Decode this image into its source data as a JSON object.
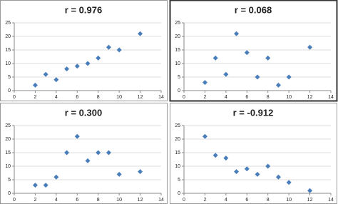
{
  "chart_data": [
    {
      "type": "scatter",
      "title": "r = 0.976",
      "color": "#4a7ebb",
      "grid": true,
      "x": [
        2,
        3,
        4,
        5,
        6,
        7,
        8,
        9,
        10,
        12
      ],
      "values": [
        2,
        6,
        4,
        8,
        9,
        10,
        12,
        16,
        15,
        21
      ],
      "xlim": [
        0,
        14
      ],
      "xticks": [
        0,
        2,
        4,
        6,
        8,
        10,
        12,
        14
      ],
      "ylim": [
        0,
        25
      ],
      "yticks": [
        0,
        5,
        10,
        15,
        20,
        25
      ]
    },
    {
      "type": "scatter",
      "title": "r = 0.068",
      "color": "#4a7ebb",
      "grid": true,
      "x": [
        2,
        3,
        4,
        5,
        6,
        7,
        8,
        9,
        10,
        12
      ],
      "values": [
        3,
        12,
        6,
        21,
        14,
        5,
        12,
        2,
        5,
        16
      ],
      "xlim": [
        0,
        14
      ],
      "xticks": [
        0,
        2,
        4,
        6,
        8,
        10,
        12,
        14
      ],
      "ylim": [
        0,
        25
      ],
      "yticks": [
        0,
        5,
        10,
        15,
        20,
        25
      ]
    },
    {
      "type": "scatter",
      "title": "r = 0.300",
      "color": "#4a7ebb",
      "grid": true,
      "x": [
        2,
        3,
        4,
        5,
        6,
        7,
        8,
        9,
        10,
        12
      ],
      "values": [
        3,
        3,
        6,
        15,
        21,
        12,
        15,
        15,
        7,
        8
      ],
      "xlim": [
        0,
        14
      ],
      "xticks": [
        0,
        2,
        4,
        6,
        8,
        10,
        12,
        14
      ],
      "ylim": [
        0,
        25
      ],
      "yticks": [
        0,
        5,
        10,
        15,
        20,
        25
      ]
    },
    {
      "type": "scatter",
      "title": "r = -0.912",
      "color": "#4a7ebb",
      "grid": true,
      "x": [
        2,
        3,
        4,
        5,
        6,
        7,
        8,
        9,
        10,
        12
      ],
      "values": [
        21,
        14,
        13,
        8,
        9,
        7,
        10,
        6,
        4,
        1
      ],
      "xlim": [
        0,
        14
      ],
      "xticks": [
        0,
        2,
        4,
        6,
        8,
        10,
        12,
        14
      ],
      "ylim": [
        0,
        25
      ],
      "yticks": [
        0,
        5,
        10,
        15,
        20,
        25
      ]
    }
  ]
}
